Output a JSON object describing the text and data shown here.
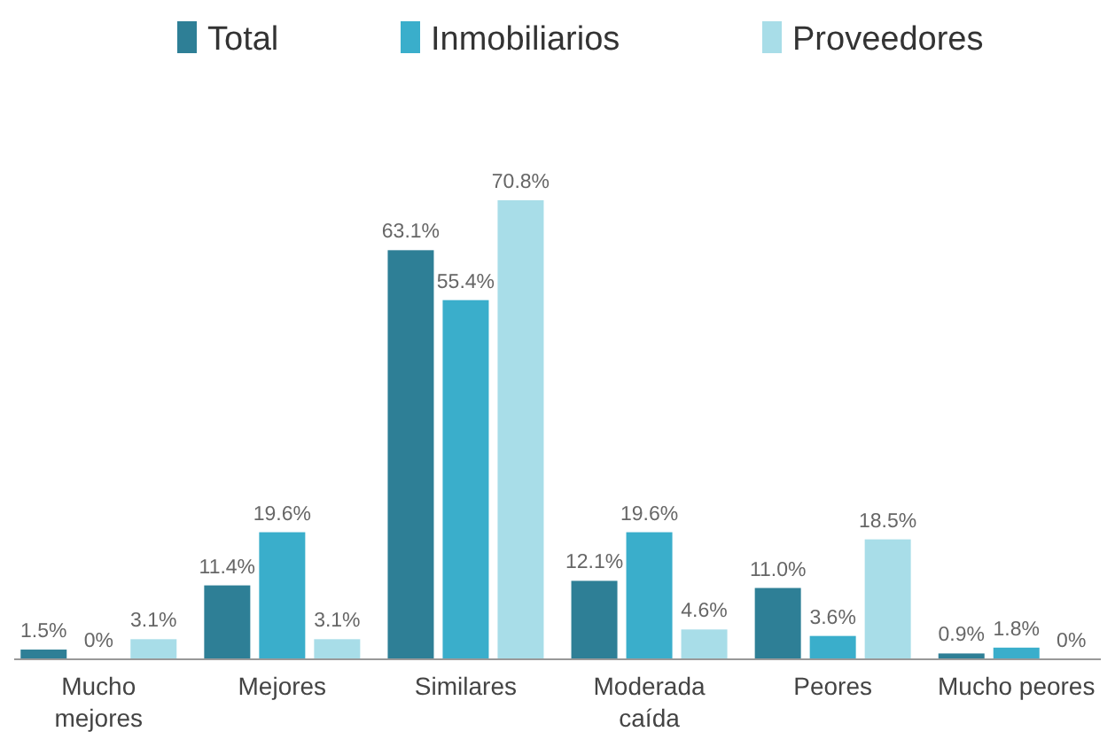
{
  "chart_data": {
    "type": "bar",
    "categories": [
      "Mucho mejores",
      "Mejores",
      "Similares",
      "Moderada caída",
      "Peores",
      "Mucho peores"
    ],
    "series": [
      {
        "name": "Total",
        "color": "#2e7f96",
        "values": [
          1.5,
          11.4,
          63.1,
          12.1,
          11.0,
          0.9
        ],
        "value_labels": [
          "1.5%",
          "11.4%",
          "63.1%",
          "12.1%",
          "11.0%",
          "0.9%"
        ]
      },
      {
        "name": "Inmobiliarios",
        "color": "#3aaecb",
        "values": [
          0,
          19.6,
          55.4,
          19.6,
          3.6,
          1.8
        ],
        "value_labels": [
          "0%",
          "19.6%",
          "55.4%",
          "19.6%",
          "3.6%",
          "1.8%"
        ]
      },
      {
        "name": "Proveedores",
        "color": "#a8dde8",
        "values": [
          3.1,
          3.1,
          70.8,
          4.6,
          18.5,
          0
        ],
        "value_labels": [
          "3.1%",
          "3.1%",
          "70.8%",
          "4.6%",
          "18.5%",
          "0%"
        ]
      }
    ],
    "legend": "top"
  }
}
